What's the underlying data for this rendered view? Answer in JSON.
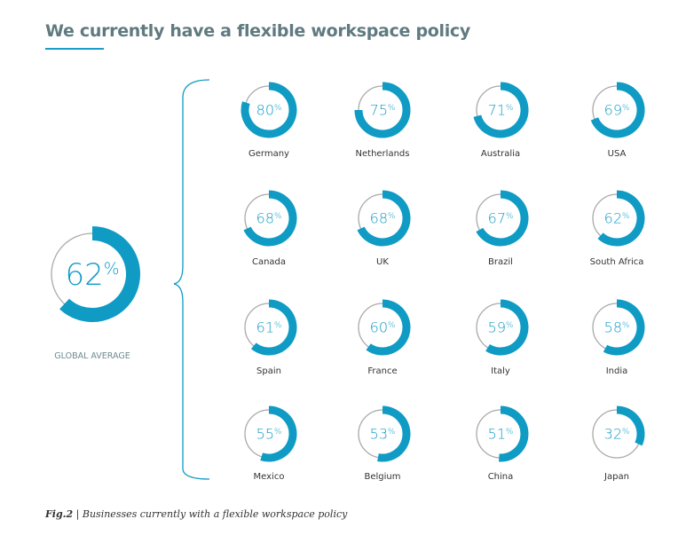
{
  "header": {
    "title": "We currently have a flexible workspace policy"
  },
  "caption": {
    "fig": "Fig.2",
    "separator": "|",
    "text": "Businesses currently with a flexible workspace policy"
  },
  "colors": {
    "accent": "#0f9bc4",
    "track": "#a9a9a9",
    "title": "#5f7a80",
    "label": "#333333",
    "global_label": "#6e8a90"
  },
  "chart_data": {
    "type": "donut-grid",
    "title": "We currently have a flexible workspace policy",
    "unit": "%",
    "global": {
      "label": "GLOBAL AVERAGE",
      "value": 62
    },
    "items": [
      {
        "country": "Germany",
        "value": 80
      },
      {
        "country": "Netherlands",
        "value": 75
      },
      {
        "country": "Australia",
        "value": 71
      },
      {
        "country": "USA",
        "value": 69
      },
      {
        "country": "Canada",
        "value": 68
      },
      {
        "country": "UK",
        "value": 68
      },
      {
        "country": "Brazil",
        "value": 67
      },
      {
        "country": "South Africa",
        "value": 62
      },
      {
        "country": "Spain",
        "value": 61
      },
      {
        "country": "France",
        "value": 60
      },
      {
        "country": "Italy",
        "value": 59
      },
      {
        "country": "India",
        "value": 58
      },
      {
        "country": "Mexico",
        "value": 55
      },
      {
        "country": "Belgium",
        "value": 53
      },
      {
        "country": "China",
        "value": 51
      },
      {
        "country": "Japan",
        "value": 32
      }
    ]
  }
}
